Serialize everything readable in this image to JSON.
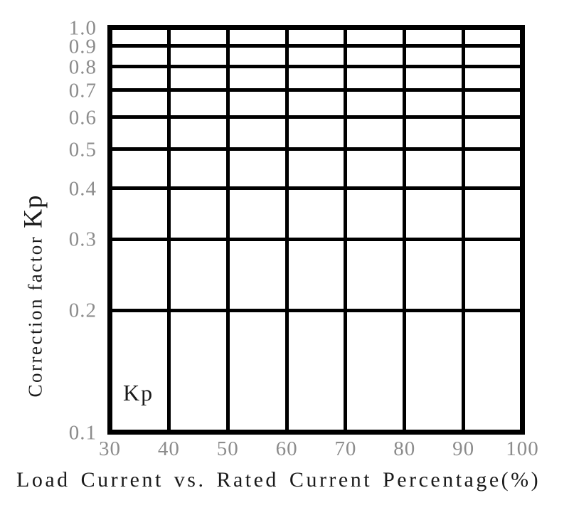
{
  "figure": {
    "background": "#ffffff"
  },
  "chart_data": {
    "type": "line",
    "title": "",
    "xlabel": "Load Current vs. Rated Current Percentage(%)",
    "ylabel": "Correction factor",
    "ylabel_emphasis": "Kp",
    "inner_label": "Kp",
    "x_ticks": [
      30,
      40,
      50,
      60,
      70,
      80,
      90,
      100
    ],
    "x_tick_labels": [
      "30",
      "40",
      "50",
      "60",
      "70",
      "80",
      "90",
      "100"
    ],
    "y_ticks": [
      1.0,
      0.9,
      0.8,
      0.7,
      0.6,
      0.5,
      0.4,
      0.3,
      0.2,
      0.1
    ],
    "y_tick_labels": [
      "1.0",
      "0.9",
      "0.8",
      "0.7",
      "0.6",
      "0.5",
      "0.4",
      "0.3",
      "0.2",
      "0.1"
    ],
    "xlim": [
      30,
      100
    ],
    "ylim": [
      0.1,
      1.0
    ],
    "x_scale": "linear",
    "y_scale": "log",
    "grid": "on",
    "legend": "none",
    "series": [],
    "colors": {
      "grid_line": "#000000",
      "tick_label": "#8c8c8c",
      "axis_label": "#1a1a1a"
    }
  }
}
